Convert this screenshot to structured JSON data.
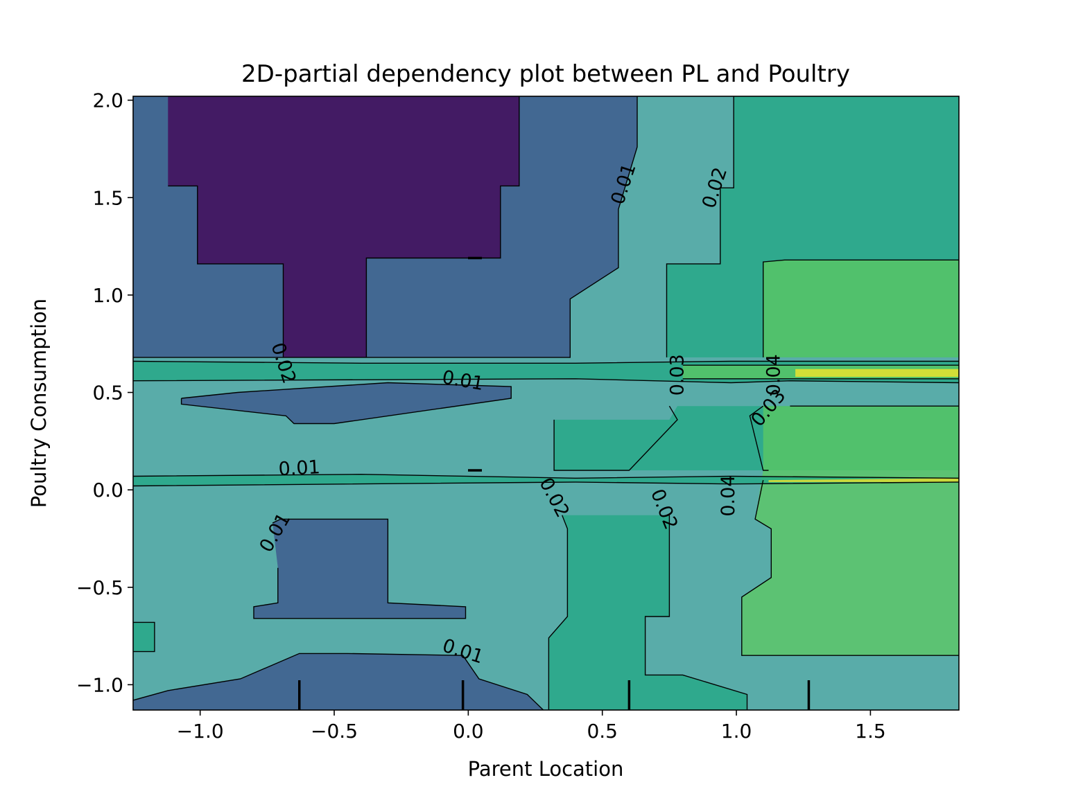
{
  "chart_data": {
    "type": "heatmap",
    "title": "2D-partial dependency plot between PL and Poultry",
    "xlabel": "Parent Location",
    "ylabel": "Poultry Consumption",
    "xlim": [
      -1.25,
      1.83
    ],
    "ylim": [
      -1.13,
      2.02
    ],
    "xticks": [
      -1.0,
      -0.5,
      0.0,
      0.5,
      1.0,
      1.5
    ],
    "yticks": [
      -1.0,
      -0.5,
      0.0,
      0.5,
      1.0,
      1.5,
      2.0
    ],
    "xtick_labels": [
      "−1.0",
      "−0.5",
      "0.0",
      "0.5",
      "1.0",
      "1.5"
    ],
    "ytick_labels": [
      "−1.0",
      "−0.5",
      "0.0",
      "0.5",
      "1.0",
      "1.5",
      "2.0"
    ],
    "colormap": "viridis",
    "contour_levels": [
      0.0,
      0.01,
      0.02,
      0.03,
      0.04,
      0.05
    ],
    "level_colors": [
      "#440154",
      "#3b528b",
      "#21908c",
      "#22a884",
      "#5ec962",
      "#fde725"
    ],
    "fill_alpha": 0.75,
    "contour_labels": [
      {
        "text": "0.01",
        "x": 0.58,
        "y": 1.57,
        "angle": -72
      },
      {
        "text": "0.02",
        "x": 0.92,
        "y": 1.55,
        "angle": -72
      },
      {
        "text": "0.02",
        "x": -0.69,
        "y": 0.65,
        "angle": 72
      },
      {
        "text": "0.01",
        "x": -0.02,
        "y": 0.56,
        "angle": 10
      },
      {
        "text": "0.03",
        "x": 0.78,
        "y": 0.59,
        "angle": -90
      },
      {
        "text": "0.04",
        "x": 1.14,
        "y": 0.59,
        "angle": -90
      },
      {
        "text": "0.03",
        "x": 1.12,
        "y": 0.42,
        "angle": -50
      },
      {
        "text": "0.01",
        "x": -0.63,
        "y": 0.11,
        "angle": -3
      },
      {
        "text": "0.02",
        "x": 0.32,
        "y": -0.04,
        "angle": 62
      },
      {
        "text": "0.02",
        "x": 0.73,
        "y": -0.1,
        "angle": 68
      },
      {
        "text": "0.04",
        "x": 0.97,
        "y": -0.03,
        "angle": -90
      },
      {
        "text": "0.01",
        "x": -0.72,
        "y": -0.22,
        "angle": -60
      },
      {
        "text": "0.01",
        "x": -0.02,
        "y": -0.83,
        "angle": 18
      }
    ],
    "deciles_x": [
      -0.63,
      -0.02,
      0.6,
      1.27
    ],
    "deciles_y": [
      0.1,
      1.19
    ],
    "regions": [
      {
        "level": 2,
        "poly": [
          [
            -1.25,
            -1.13
          ],
          [
            1.83,
            -1.13
          ],
          [
            1.83,
            2.02
          ],
          [
            -1.25,
            2.02
          ]
        ]
      },
      {
        "level": 1,
        "poly": [
          [
            -1.25,
            0.68
          ],
          [
            0.38,
            0.68
          ],
          [
            0.38,
            0.98
          ],
          [
            0.56,
            1.14
          ],
          [
            0.56,
            1.44
          ],
          [
            0.63,
            1.76
          ],
          [
            0.63,
            2.02
          ],
          [
            -1.25,
            2.02
          ]
        ]
      },
      {
        "level": 0,
        "poly": [
          [
            -1.12,
            1.56
          ],
          [
            -1.12,
            2.02
          ],
          [
            0.19,
            2.02
          ],
          [
            0.19,
            1.56
          ],
          [
            0.12,
            1.56
          ],
          [
            0.12,
            1.19
          ],
          [
            -0.38,
            1.19
          ],
          [
            -0.38,
            0.68
          ],
          [
            -0.69,
            0.68
          ],
          [
            -0.69,
            1.16
          ],
          [
            -1.01,
            1.16
          ],
          [
            -1.01,
            1.56
          ]
        ]
      },
      {
        "level": 3,
        "poly": [
          [
            0.74,
            1.16
          ],
          [
            0.74,
            0.68
          ],
          [
            1.83,
            0.68
          ],
          [
            1.83,
            2.02
          ],
          [
            0.99,
            2.02
          ],
          [
            0.99,
            1.55
          ],
          [
            0.94,
            1.55
          ],
          [
            0.94,
            1.16
          ]
        ]
      },
      {
        "level": 4,
        "poly": [
          [
            1.1,
            1.17
          ],
          [
            1.18,
            1.18
          ],
          [
            1.83,
            1.18
          ],
          [
            1.83,
            0.68
          ],
          [
            1.1,
            0.68
          ]
        ]
      },
      {
        "level": 3,
        "poly": [
          [
            -1.25,
            0.66
          ],
          [
            -0.4,
            0.65
          ],
          [
            0.4,
            0.65
          ],
          [
            0.98,
            0.66
          ],
          [
            1.2,
            0.66
          ],
          [
            1.83,
            0.66
          ],
          [
            1.83,
            0.55
          ],
          [
            1.2,
            0.56
          ],
          [
            0.98,
            0.55
          ],
          [
            0.4,
            0.57
          ],
          [
            -1.25,
            0.56
          ]
        ]
      },
      {
        "level": 4,
        "poly": [
          [
            0.8,
            0.64
          ],
          [
            1.83,
            0.64
          ],
          [
            1.83,
            0.57
          ],
          [
            0.8,
            0.57
          ]
        ]
      },
      {
        "level": 5,
        "poly": [
          [
            1.22,
            0.62
          ],
          [
            1.83,
            0.62
          ],
          [
            1.83,
            0.58
          ],
          [
            1.22,
            0.58
          ]
        ]
      },
      {
        "level": 1,
        "poly": [
          [
            -1.07,
            0.47
          ],
          [
            -0.86,
            0.5
          ],
          [
            -0.3,
            0.55
          ],
          [
            0.16,
            0.53
          ],
          [
            0.16,
            0.47
          ],
          [
            -0.5,
            0.34
          ],
          [
            -0.65,
            0.34
          ],
          [
            -0.68,
            0.38
          ],
          [
            -1.07,
            0.44
          ]
        ]
      },
      {
        "level": 3,
        "poly": [
          [
            0.32,
            0.36
          ],
          [
            0.32,
            0.1
          ],
          [
            1.83,
            0.1
          ],
          [
            1.83,
            0.43
          ],
          [
            1.05,
            0.43
          ],
          [
            0.78,
            0.43
          ],
          [
            0.75,
            0.36
          ]
        ]
      },
      {
        "level": 4,
        "poly": [
          [
            1.1,
            0.43
          ],
          [
            1.83,
            0.43
          ],
          [
            1.83,
            -0.85
          ],
          [
            1.02,
            -0.85
          ],
          [
            1.02,
            -0.55
          ],
          [
            1.13,
            -0.45
          ],
          [
            1.13,
            -0.2
          ],
          [
            1.07,
            -0.15
          ],
          [
            1.1,
            0.1
          ]
        ]
      },
      {
        "level": 3,
        "poly": [
          [
            -1.25,
            0.07
          ],
          [
            -0.4,
            0.08
          ],
          [
            0.4,
            0.06
          ],
          [
            0.98,
            0.07
          ],
          [
            1.83,
            0.06
          ],
          [
            1.83,
            0.04
          ],
          [
            0.98,
            0.03
          ],
          [
            0.4,
            0.04
          ],
          [
            -1.25,
            0.02
          ]
        ]
      },
      {
        "level": 5,
        "poly": [
          [
            1.12,
            0.05
          ],
          [
            1.83,
            0.06
          ],
          [
            1.83,
            0.04
          ],
          [
            1.12,
            0.04
          ]
        ]
      },
      {
        "level": 1,
        "poly": [
          [
            -0.73,
            -0.17
          ],
          [
            -0.7,
            -0.15
          ],
          [
            -0.3,
            -0.15
          ],
          [
            -0.3,
            -0.58
          ],
          [
            -0.01,
            -0.6
          ],
          [
            -0.01,
            -0.66
          ],
          [
            -0.8,
            -0.66
          ],
          [
            -0.8,
            -0.6
          ],
          [
            -0.71,
            -0.58
          ],
          [
            -0.71,
            -0.4
          ]
        ]
      },
      {
        "level": 3,
        "poly": [
          [
            0.35,
            -0.13
          ],
          [
            0.75,
            -0.13
          ],
          [
            0.75,
            -0.65
          ],
          [
            0.66,
            -0.65
          ],
          [
            0.66,
            -0.95
          ],
          [
            0.8,
            -0.95
          ],
          [
            1.04,
            -1.05
          ],
          [
            1.04,
            -1.13
          ],
          [
            0.3,
            -1.13
          ],
          [
            0.3,
            -0.76
          ],
          [
            0.37,
            -0.65
          ],
          [
            0.37,
            -0.2
          ]
        ]
      },
      {
        "level": 3,
        "poly": [
          [
            -1.25,
            -0.68
          ],
          [
            -1.17,
            -0.68
          ],
          [
            -1.17,
            -0.83
          ],
          [
            -1.25,
            -0.83
          ]
        ]
      },
      {
        "level": 1,
        "poly": [
          [
            -1.25,
            -1.13
          ],
          [
            -1.25,
            -1.08
          ],
          [
            -1.12,
            -1.03
          ],
          [
            -0.85,
            -0.97
          ],
          [
            -0.63,
            -0.84
          ],
          [
            -0.45,
            -0.84
          ],
          [
            -0.02,
            -0.85
          ],
          [
            0.04,
            -0.97
          ],
          [
            0.22,
            -1.05
          ],
          [
            0.28,
            -1.13
          ]
        ]
      }
    ],
    "contour_lines": [
      [
        [
          -1.25,
          0.68
        ],
        [
          -0.38,
          0.68
        ],
        [
          0.38,
          0.68
        ],
        [
          0.38,
          0.98
        ],
        [
          0.56,
          1.14
        ],
        [
          0.56,
          1.44
        ],
        [
          0.63,
          1.76
        ],
        [
          0.63,
          2.02
        ]
      ],
      [
        [
          -1.12,
          1.56
        ],
        [
          -1.01,
          1.56
        ],
        [
          -1.01,
          1.16
        ],
        [
          -0.69,
          1.16
        ],
        [
          -0.69,
          0.68
        ]
      ],
      [
        [
          0.19,
          2.02
        ],
        [
          0.19,
          1.56
        ],
        [
          0.12,
          1.56
        ],
        [
          0.12,
          1.19
        ],
        [
          -0.38,
          1.19
        ],
        [
          -0.38,
          0.68
        ]
      ],
      [
        [
          0.99,
          2.02
        ],
        [
          0.99,
          1.55
        ],
        [
          0.94,
          1.55
        ],
        [
          0.94,
          1.16
        ],
        [
          0.74,
          1.16
        ],
        [
          0.74,
          0.68
        ]
      ],
      [
        [
          1.83,
          1.18
        ],
        [
          1.18,
          1.18
        ],
        [
          1.1,
          1.17
        ],
        [
          1.1,
          0.68
        ]
      ],
      [
        [
          -1.25,
          0.66
        ],
        [
          -0.4,
          0.65
        ],
        [
          0.4,
          0.65
        ],
        [
          0.98,
          0.66
        ],
        [
          1.2,
          0.66
        ],
        [
          1.83,
          0.66
        ]
      ],
      [
        [
          -1.25,
          0.56
        ],
        [
          0.4,
          0.57
        ],
        [
          0.98,
          0.55
        ],
        [
          1.2,
          0.56
        ],
        [
          1.83,
          0.55
        ]
      ],
      [
        [
          0.8,
          0.64
        ],
        [
          1.83,
          0.64
        ]
      ],
      [
        [
          0.8,
          0.57
        ],
        [
          1.83,
          0.57
        ]
      ],
      [
        [
          -1.07,
          0.47
        ],
        [
          -0.86,
          0.5
        ],
        [
          -0.3,
          0.55
        ],
        [
          0.16,
          0.53
        ],
        [
          0.16,
          0.47
        ],
        [
          -0.5,
          0.34
        ],
        [
          -0.65,
          0.34
        ],
        [
          -0.68,
          0.38
        ],
        [
          -1.07,
          0.44
        ],
        [
          -1.07,
          0.47
        ]
      ],
      [
        [
          0.32,
          0.36
        ],
        [
          0.32,
          0.1
        ],
        [
          0.6,
          0.1
        ],
        [
          0.78,
          0.36
        ],
        [
          0.75,
          0.43
        ]
      ],
      [
        [
          1.1,
          0.43
        ],
        [
          1.05,
          0.38
        ],
        [
          1.1,
          0.1
        ],
        [
          1.12,
          0.1
        ]
      ],
      [
        [
          1.83,
          0.43
        ],
        [
          1.2,
          0.43
        ]
      ],
      [
        [
          -1.25,
          0.07
        ],
        [
          -0.4,
          0.08
        ],
        [
          0.4,
          0.06
        ],
        [
          0.98,
          0.07
        ],
        [
          1.83,
          0.06
        ]
      ],
      [
        [
          -1.25,
          0.02
        ],
        [
          0.4,
          0.04
        ],
        [
          0.98,
          0.03
        ],
        [
          1.83,
          0.04
        ]
      ],
      [
        [
          -0.73,
          -0.17
        ],
        [
          -0.7,
          -0.15
        ],
        [
          -0.3,
          -0.15
        ],
        [
          -0.3,
          -0.58
        ],
        [
          -0.01,
          -0.6
        ],
        [
          -0.01,
          -0.66
        ],
        [
          -0.8,
          -0.66
        ],
        [
          -0.8,
          -0.6
        ],
        [
          -0.71,
          -0.58
        ],
        [
          -0.71,
          -0.4
        ]
      ],
      [
        [
          0.35,
          -0.13
        ],
        [
          0.37,
          -0.2
        ],
        [
          0.37,
          -0.65
        ],
        [
          0.3,
          -0.76
        ],
        [
          0.3,
          -1.13
        ]
      ],
      [
        [
          0.75,
          -0.13
        ],
        [
          0.75,
          -0.65
        ],
        [
          0.66,
          -0.65
        ],
        [
          0.66,
          -0.95
        ],
        [
          0.8,
          -0.95
        ],
        [
          1.04,
          -1.05
        ],
        [
          1.04,
          -1.13
        ]
      ],
      [
        [
          1.83,
          -0.85
        ],
        [
          1.02,
          -0.85
        ],
        [
          1.02,
          -0.55
        ],
        [
          1.13,
          -0.45
        ],
        [
          1.13,
          -0.2
        ],
        [
          1.07,
          -0.15
        ],
        [
          1.1,
          0.05
        ]
      ],
      [
        [
          -1.25,
          -0.68
        ],
        [
          -1.17,
          -0.68
        ],
        [
          -1.17,
          -0.83
        ],
        [
          -1.25,
          -0.83
        ]
      ],
      [
        [
          -1.25,
          -1.08
        ],
        [
          -1.12,
          -1.03
        ],
        [
          -0.85,
          -0.97
        ],
        [
          -0.63,
          -0.84
        ],
        [
          -0.45,
          -0.84
        ],
        [
          -0.02,
          -0.85
        ],
        [
          0.04,
          -0.97
        ],
        [
          0.22,
          -1.05
        ],
        [
          0.28,
          -1.13
        ]
      ]
    ]
  }
}
